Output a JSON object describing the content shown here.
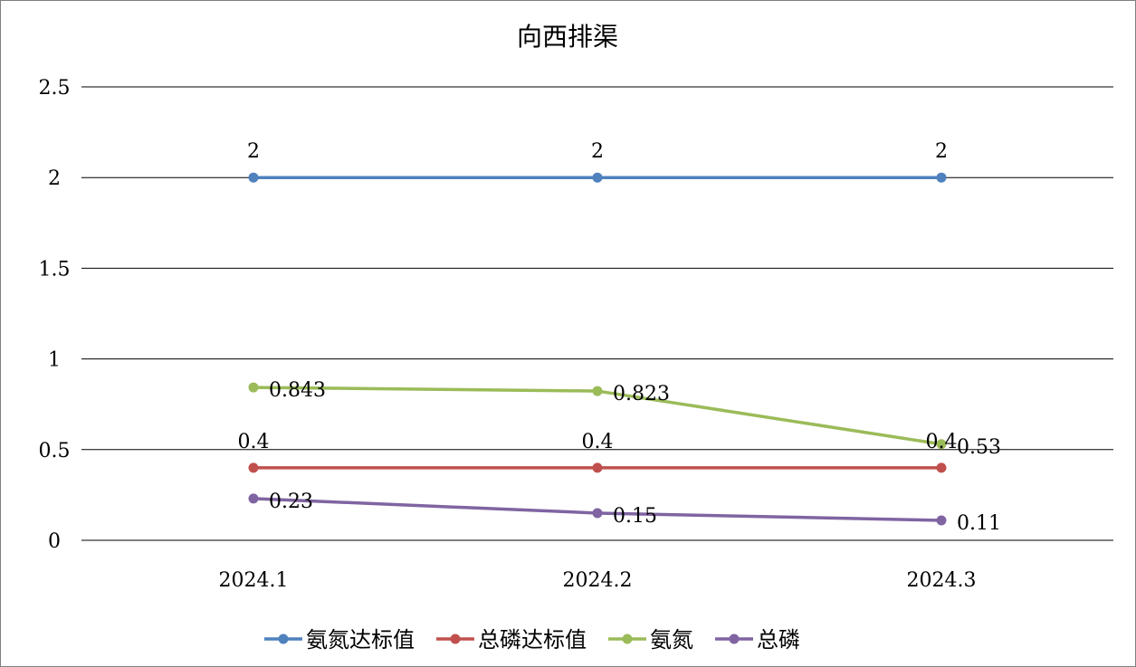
{
  "chart_data": {
    "type": "line",
    "title": "向西排渠",
    "xlabel": "",
    "ylabel": "",
    "categories": [
      "2024.1",
      "2024.2",
      "2024.3"
    ],
    "y_ticks": [
      "0",
      "0.5",
      "1",
      "1.5",
      "2",
      "2.5"
    ],
    "ylim": [
      0,
      2.5
    ],
    "grid": true,
    "legend_position": "bottom",
    "series": [
      {
        "name": "氨氮达标值",
        "color": "#4f81bd",
        "values": [
          2,
          2,
          2
        ],
        "labels": [
          "2",
          "2",
          "2"
        ],
        "label_pos": "above"
      },
      {
        "name": "总磷达标值",
        "color": "#c0504d",
        "values": [
          0.4,
          0.4,
          0.4
        ],
        "labels": [
          "0.4",
          "0.4",
          "0.4"
        ],
        "label_pos": "above"
      },
      {
        "name": "氨氮",
        "color": "#9bbb59",
        "values": [
          0.843,
          0.823,
          0.53
        ],
        "labels": [
          "0.843",
          "0.823",
          "0.53"
        ],
        "label_pos": "right"
      },
      {
        "name": "总磷",
        "color": "#8064a2",
        "values": [
          0.23,
          0.15,
          0.11
        ],
        "labels": [
          "0.23",
          "0.15",
          "0.11"
        ],
        "label_pos": "right"
      }
    ]
  }
}
